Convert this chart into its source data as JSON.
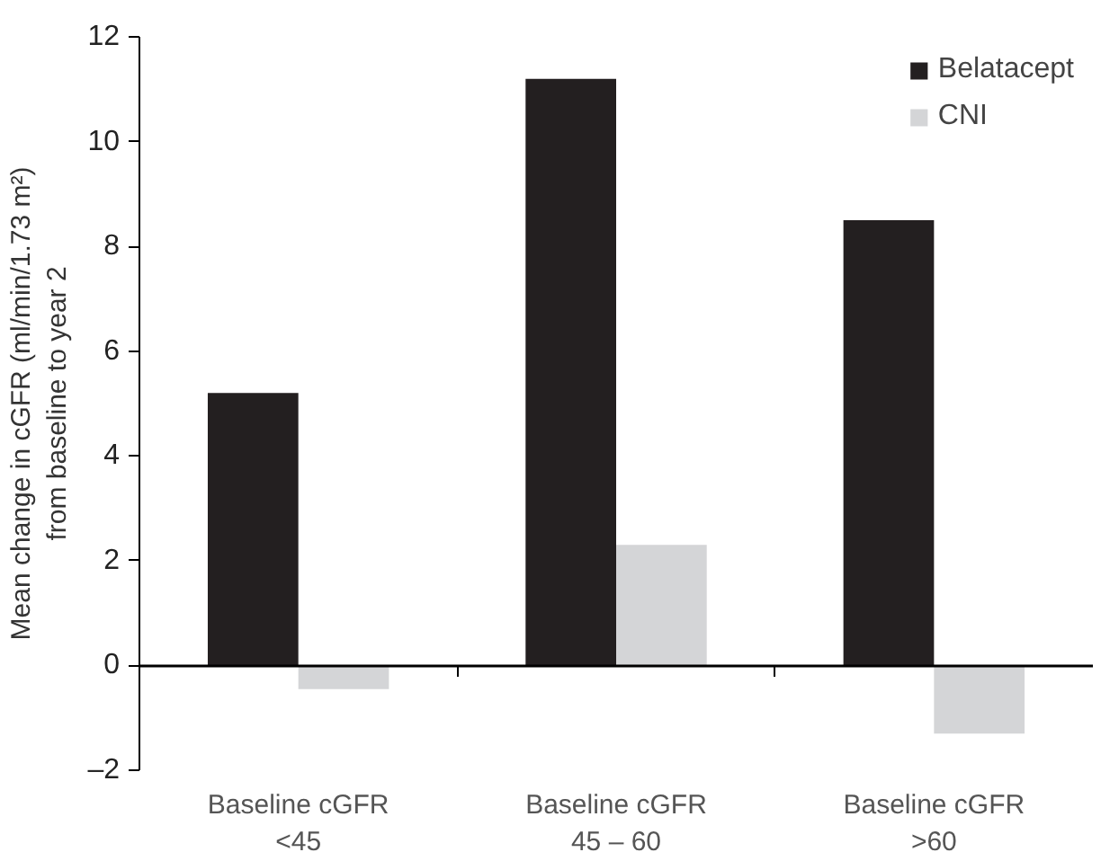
{
  "chart_data": {
    "type": "bar",
    "ylabel": "Mean change in cGFR (ml/min/1.73 m²)\nfrom baseline to year 2",
    "categories": [
      "Baseline cGFR\n<45",
      "Baseline cGFR\n45 – 60",
      "Baseline cGFR\n>60"
    ],
    "series": [
      {
        "name": "Belatacept",
        "color": "#231f20",
        "values": [
          5.2,
          11.2,
          8.5
        ]
      },
      {
        "name": "CNI",
        "color": "#d4d5d7",
        "values": [
          -0.45,
          2.3,
          -1.3
        ]
      }
    ],
    "ylim": [
      -2,
      12
    ],
    "yticks": [
      {
        "value": -2,
        "label": "–2"
      },
      0,
      2,
      4,
      6,
      8,
      10,
      12
    ],
    "legend": "top right"
  }
}
